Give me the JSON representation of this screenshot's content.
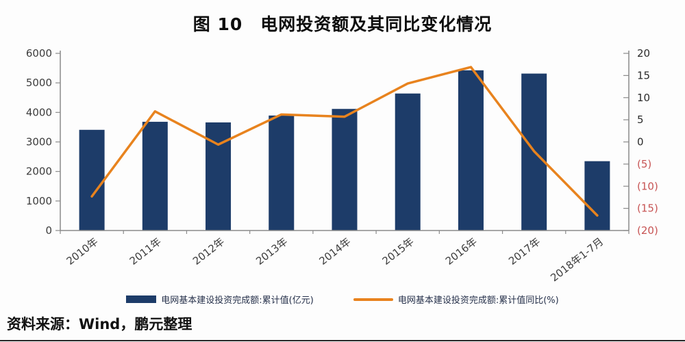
{
  "title": "图 10　电网投资额及其同比变化情况",
  "source": "资料来源：Wind，鹏元整理",
  "colors": {
    "bar": "#1d3c69",
    "line": "#e8831e",
    "axis": "#8a8a8a",
    "tick_label": "#3d3d3d",
    "right_positive_label": "#2b2b2b",
    "right_negative_label": "#c75454"
  },
  "chart_data": {
    "type": "bar",
    "subtype": "bar-line-combo",
    "title": "图 10　电网投资额及其同比变化情况",
    "categories": [
      "2010年",
      "2011年",
      "2012年",
      "2013年",
      "2014年",
      "2015年",
      "2016年",
      "2017年",
      "2018年1-7月"
    ],
    "series": [
      {
        "name": "电网基本建设投资完成额:累计值(亿元)",
        "type": "bar",
        "axis": "left",
        "color": "#1d3c69",
        "values": [
          3410,
          3682,
          3661,
          3894,
          4118,
          4640,
          5426,
          5315,
          2348
        ]
      },
      {
        "name": "电网基本建设投资完成额:累计值同比(%)",
        "type": "line",
        "axis": "right",
        "color": "#e8831e",
        "values": [
          -12.3,
          6.9,
          -0.6,
          6.2,
          5.7,
          13.2,
          16.9,
          -2.1,
          -16.6
        ]
      }
    ],
    "left_axis": {
      "min": 0,
      "max": 6000,
      "step": 1000
    },
    "right_axis": {
      "min": -20,
      "max": 20,
      "step": 5,
      "negative_format": "parentheses"
    },
    "grid": false,
    "legend_position": "bottom",
    "x_label_rotation": -38
  }
}
